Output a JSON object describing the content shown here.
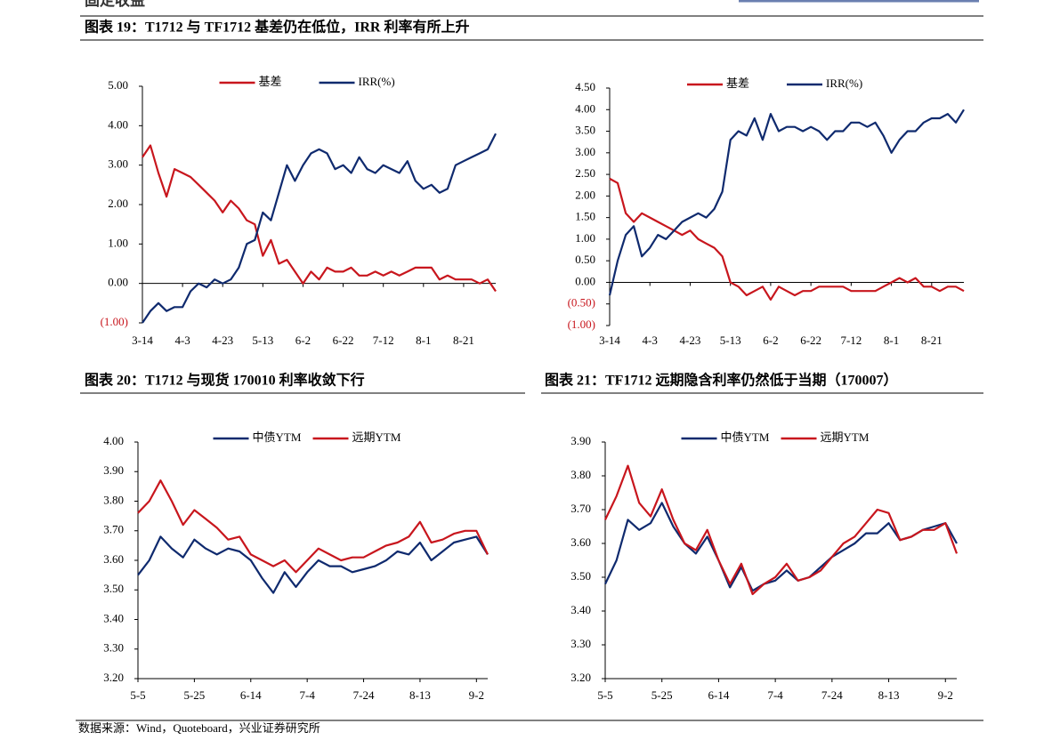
{
  "header": {
    "section": "固定收益"
  },
  "figures": [
    "图表 19：T1712 与 TF1712 基差仍在低位，IRR 利率有所上升",
    "图表 20：T1712 与现货 170010 利率收敛下行",
    "图表 21：TF1712 远期隐含利率仍然低于当期（170007）"
  ],
  "source": "数据来源：Wind，Quoteboard，兴业证券研究所",
  "chart_data": [
    {
      "type": "line",
      "legend": "top",
      "categories": [
        "3-14",
        null,
        null,
        null,
        null,
        "4-3",
        null,
        null,
        null,
        null,
        "4-23",
        null,
        null,
        null,
        null,
        "5-13",
        null,
        null,
        null,
        null,
        "6-2",
        null,
        null,
        null,
        null,
        "6-22",
        null,
        null,
        null,
        null,
        "7-12",
        null,
        null,
        null,
        null,
        "8-1",
        null,
        null,
        null,
        null,
        "8-21",
        null,
        null,
        null,
        null
      ],
      "series": [
        {
          "name": "基差",
          "color": "#c8161d",
          "values": [
            3.2,
            3.5,
            2.8,
            2.2,
            2.9,
            2.8,
            2.7,
            2.5,
            2.3,
            2.1,
            1.8,
            2.1,
            1.9,
            1.6,
            1.5,
            0.7,
            1.1,
            0.5,
            0.6,
            0.3,
            0.0,
            0.3,
            0.1,
            0.4,
            0.3,
            0.3,
            0.4,
            0.2,
            0.2,
            0.3,
            0.2,
            0.3,
            0.2,
            0.3,
            0.4,
            0.4,
            0.4,
            0.1,
            0.2,
            0.1,
            0.1,
            0.1,
            0.0,
            0.1,
            -0.2
          ]
        },
        {
          "name": "IRR(%)",
          "color": "#0f2a6e",
          "values": [
            -1.0,
            -0.7,
            -0.5,
            -0.7,
            -0.6,
            -0.6,
            -0.2,
            0.0,
            -0.1,
            0.1,
            0.0,
            0.1,
            0.4,
            1.0,
            1.1,
            1.8,
            1.6,
            2.3,
            3.0,
            2.6,
            3.0,
            3.3,
            3.4,
            3.3,
            2.9,
            3.0,
            2.8,
            3.2,
            2.9,
            2.8,
            3.0,
            2.9,
            2.8,
            3.1,
            2.6,
            2.4,
            2.5,
            2.3,
            2.4,
            3.0,
            3.1,
            3.2,
            3.3,
            3.4,
            3.8
          ]
        }
      ],
      "ylim": [
        -1,
        5
      ],
      "yticks": [
        {
          "value": -1,
          "label": "(1.00)"
        },
        {
          "value": 0,
          "label": "0.00"
        },
        {
          "value": 1,
          "label": "1.00"
        },
        {
          "value": 2,
          "label": "2.00"
        },
        {
          "value": 3,
          "label": "3.00"
        },
        {
          "value": 4,
          "label": "4.00"
        },
        {
          "value": 5,
          "label": "5.00"
        }
      ]
    },
    {
      "type": "line",
      "legend": "top",
      "categories": [
        "3-14",
        null,
        null,
        null,
        null,
        "4-3",
        null,
        null,
        null,
        null,
        "4-23",
        null,
        null,
        null,
        null,
        "5-13",
        null,
        null,
        null,
        null,
        "6-2",
        null,
        null,
        null,
        null,
        "6-22",
        null,
        null,
        null,
        null,
        "7-12",
        null,
        null,
        null,
        null,
        "8-1",
        null,
        null,
        null,
        null,
        "8-21",
        null,
        null,
        null,
        null
      ],
      "series": [
        {
          "name": "基差",
          "color": "#c8161d",
          "values": [
            2.4,
            2.3,
            1.6,
            1.4,
            1.6,
            1.5,
            1.4,
            1.3,
            1.2,
            1.1,
            1.2,
            1.0,
            0.9,
            0.8,
            0.6,
            0.0,
            -0.1,
            -0.3,
            -0.2,
            -0.1,
            -0.4,
            -0.1,
            -0.2,
            -0.3,
            -0.2,
            -0.2,
            -0.1,
            -0.1,
            -0.1,
            -0.1,
            -0.2,
            -0.2,
            -0.2,
            -0.2,
            -0.1,
            0.0,
            0.1,
            0.0,
            0.1,
            -0.1,
            -0.1,
            -0.2,
            -0.1,
            -0.1,
            -0.2
          ]
        },
        {
          "name": "IRR(%)",
          "color": "#0f2a6e",
          "values": [
            -0.3,
            0.5,
            1.1,
            1.3,
            0.6,
            0.8,
            1.1,
            1.0,
            1.2,
            1.4,
            1.5,
            1.6,
            1.5,
            1.7,
            2.1,
            3.3,
            3.5,
            3.4,
            3.8,
            3.3,
            3.9,
            3.5,
            3.6,
            3.6,
            3.5,
            3.6,
            3.5,
            3.3,
            3.5,
            3.5,
            3.7,
            3.7,
            3.6,
            3.7,
            3.4,
            3.0,
            3.3,
            3.5,
            3.5,
            3.7,
            3.8,
            3.8,
            3.9,
            3.7,
            4.0
          ]
        }
      ],
      "ylim": [
        -1,
        4.5
      ],
      "yticks": [
        {
          "value": -1,
          "label": "(1.00)"
        },
        {
          "value": -0.5,
          "label": "(0.50)"
        },
        {
          "value": 0,
          "label": "0.00"
        },
        {
          "value": 0.5,
          "label": "0.50"
        },
        {
          "value": 1,
          "label": "1.00"
        },
        {
          "value": 1.5,
          "label": "1.50"
        },
        {
          "value": 2,
          "label": "2.00"
        },
        {
          "value": 2.5,
          "label": "2.50"
        },
        {
          "value": 3,
          "label": "3.00"
        },
        {
          "value": 3.5,
          "label": "3.50"
        },
        {
          "value": 4,
          "label": "4.00"
        },
        {
          "value": 4.5,
          "label": "4.50"
        }
      ]
    },
    {
      "type": "line",
      "legend": "top",
      "categories": [
        "5-5",
        null,
        null,
        null,
        null,
        "5-25",
        null,
        null,
        null,
        null,
        "6-14",
        null,
        null,
        null,
        null,
        "7-4",
        null,
        null,
        null,
        null,
        "7-24",
        null,
        null,
        null,
        null,
        "8-13",
        null,
        null,
        null,
        null,
        "9-2",
        null
      ],
      "series": [
        {
          "name": "中债YTM",
          "color": "#0f2a6e",
          "values": [
            3.55,
            3.6,
            3.68,
            3.64,
            3.61,
            3.67,
            3.64,
            3.62,
            3.64,
            3.63,
            3.6,
            3.54,
            3.49,
            3.56,
            3.51,
            3.56,
            3.6,
            3.58,
            3.58,
            3.56,
            3.57,
            3.58,
            3.6,
            3.63,
            3.62,
            3.66,
            3.6,
            3.63,
            3.66,
            3.67,
            3.68,
            3.62
          ]
        },
        {
          "name": "远期YTM",
          "color": "#c8161d",
          "values": [
            3.76,
            3.8,
            3.87,
            3.8,
            3.72,
            3.77,
            3.74,
            3.71,
            3.67,
            3.68,
            3.62,
            3.6,
            3.58,
            3.6,
            3.56,
            3.6,
            3.64,
            3.62,
            3.6,
            3.61,
            3.61,
            3.63,
            3.65,
            3.66,
            3.68,
            3.73,
            3.66,
            3.67,
            3.69,
            3.7,
            3.7,
            3.62
          ]
        }
      ],
      "ylim": [
        3.2,
        4.0
      ],
      "yticks": [
        {
          "value": 3.2,
          "label": "3.20"
        },
        {
          "value": 3.3,
          "label": "3.30"
        },
        {
          "value": 3.4,
          "label": "3.40"
        },
        {
          "value": 3.5,
          "label": "3.50"
        },
        {
          "value": 3.6,
          "label": "3.60"
        },
        {
          "value": 3.7,
          "label": "3.70"
        },
        {
          "value": 3.8,
          "label": "3.80"
        },
        {
          "value": 3.9,
          "label": "3.90"
        },
        {
          "value": 4.0,
          "label": "4.00"
        }
      ]
    },
    {
      "type": "line",
      "legend": "top",
      "categories": [
        "5-5",
        null,
        null,
        null,
        null,
        "5-25",
        null,
        null,
        null,
        null,
        "6-14",
        null,
        null,
        null,
        null,
        "7-4",
        null,
        null,
        null,
        null,
        "7-24",
        null,
        null,
        null,
        null,
        "8-13",
        null,
        null,
        null,
        null,
        "9-2",
        null
      ],
      "series": [
        {
          "name": "中债YTM",
          "color": "#0f2a6e",
          "values": [
            3.48,
            3.55,
            3.67,
            3.64,
            3.66,
            3.72,
            3.65,
            3.6,
            3.57,
            3.62,
            3.55,
            3.47,
            3.53,
            3.46,
            3.48,
            3.49,
            3.52,
            3.49,
            3.5,
            3.53,
            3.56,
            3.58,
            3.6,
            3.63,
            3.63,
            3.66,
            3.61,
            3.62,
            3.64,
            3.65,
            3.66,
            3.6
          ]
        },
        {
          "name": "远期YTM",
          "color": "#c8161d",
          "values": [
            3.67,
            3.74,
            3.83,
            3.72,
            3.68,
            3.76,
            3.67,
            3.6,
            3.58,
            3.64,
            3.55,
            3.48,
            3.54,
            3.45,
            3.48,
            3.5,
            3.54,
            3.49,
            3.5,
            3.52,
            3.56,
            3.6,
            3.62,
            3.66,
            3.7,
            3.69,
            3.61,
            3.62,
            3.64,
            3.64,
            3.66,
            3.57
          ]
        }
      ],
      "ylim": [
        3.2,
        3.9
      ],
      "yticks": [
        {
          "value": 3.2,
          "label": "3.20"
        },
        {
          "value": 3.3,
          "label": "3.30"
        },
        {
          "value": 3.4,
          "label": "3.40"
        },
        {
          "value": 3.5,
          "label": "3.50"
        },
        {
          "value": 3.6,
          "label": "3.60"
        },
        {
          "value": 3.7,
          "label": "3.70"
        },
        {
          "value": 3.8,
          "label": "3.80"
        },
        {
          "value": 3.9,
          "label": "3.90"
        }
      ]
    }
  ]
}
